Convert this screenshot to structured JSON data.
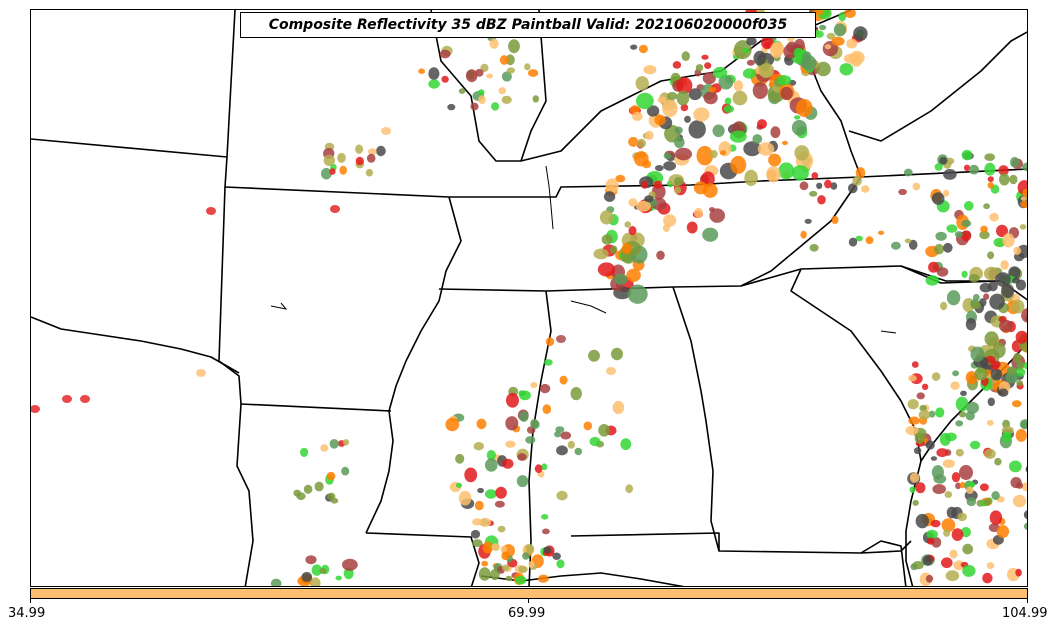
{
  "title": "Composite Reflectivity 35 dBZ Paintball Valid: 202106020000f035",
  "colorbar": {
    "color": "#fdbf6f",
    "ticks": [
      "34.99",
      "69.99",
      "104.99"
    ]
  },
  "paintball_colors": [
    "#e31a1c",
    "#ff7f00",
    "#fdbf6f",
    "#33d633",
    "#5a9a5a",
    "#b4ae50",
    "#a84040",
    "#4a4a4a",
    "#7a9a3a"
  ],
  "boundary_color": "#000000"
}
